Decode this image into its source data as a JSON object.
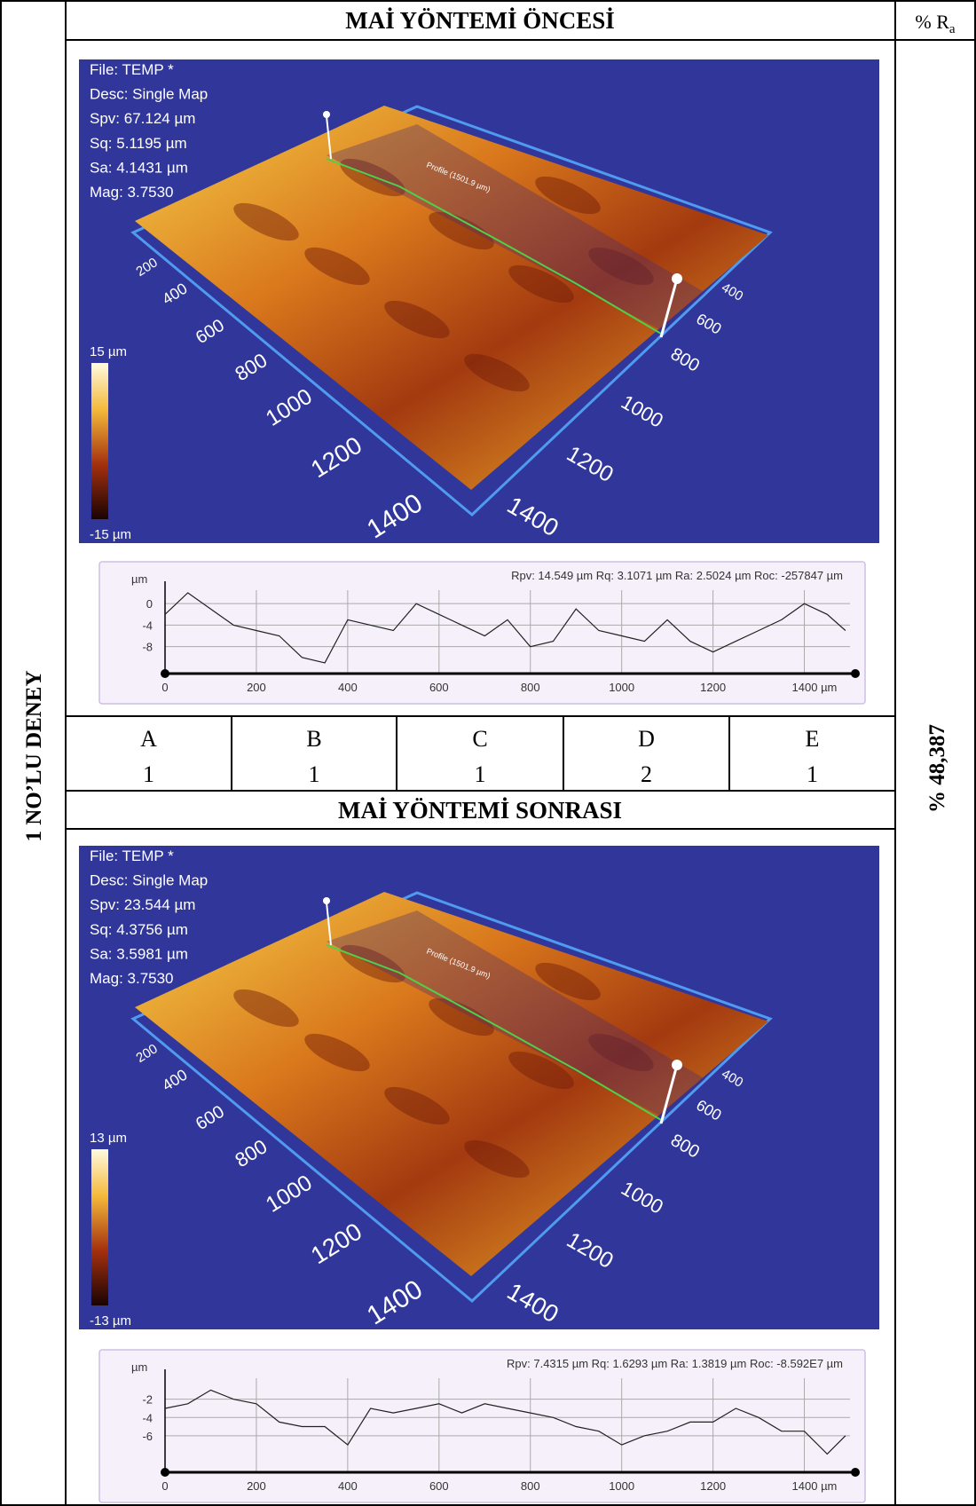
{
  "side_label": "1 NO’LU DENEY",
  "ra_header": {
    "text": "% R",
    "subscript": "a"
  },
  "ra_value": "% 48,387",
  "before": {
    "title": "MAİ YÖNTEMİ ÖNCESİ",
    "map": {
      "info": [
        "File: TEMP *",
        "Desc: Single Map",
        "Spv: 67.124 µm",
        "Sq: 5.1195 µm",
        "Sa: 4.1431 µm",
        "Mag: 3.7530"
      ],
      "colorbar_max": "15 µm",
      "colorbar_min": "-15 µm",
      "profile_label": "Profile (1501.9 µm)",
      "left_ticks": [
        200,
        400,
        600,
        800,
        1000,
        1200,
        1400
      ],
      "right_ticks": [
        400,
        600,
        800,
        1000,
        1200,
        1400
      ]
    },
    "profile": {
      "type": "line",
      "y_unit": "µm",
      "stats": "Rpv: 14.549 µm  Rq: 3.1071 µm  Ra: 2.5024 µm  Roc: -257847 µm",
      "x": [
        0,
        50,
        100,
        150,
        200,
        250,
        300,
        350,
        400,
        450,
        500,
        550,
        600,
        650,
        700,
        750,
        800,
        850,
        900,
        950,
        1000,
        1050,
        1100,
        1150,
        1200,
        1250,
        1300,
        1350,
        1400,
        1450,
        1490
      ],
      "values": [
        -2,
        2,
        -1,
        -4,
        -5,
        -6,
        -10,
        -11,
        -3,
        -4,
        -5,
        0,
        -2,
        -4,
        -6,
        -3,
        -8,
        -7,
        -1,
        -5,
        -6,
        -7,
        -3,
        -7,
        -9,
        -7,
        -5,
        -3,
        0,
        -2,
        -5
      ],
      "xlim": [
        0,
        1500
      ],
      "ylim": [
        -13,
        2.5
      ],
      "yticks": [
        0,
        -4,
        -8
      ],
      "xticks": [
        0,
        200,
        400,
        600,
        800,
        1000,
        1200,
        {
          "value": 1400,
          "label": "1400 µm"
        }
      ]
    }
  },
  "scores": {
    "headers": [
      "A",
      "B",
      "C",
      "D",
      "E"
    ],
    "values": [
      1,
      1,
      1,
      2,
      1
    ]
  },
  "after": {
    "title": "MAİ YÖNTEMİ SONRASI",
    "map": {
      "info": [
        "File: TEMP *",
        "Desc: Single Map",
        "Spv: 23.544 µm",
        "Sq: 4.3756 µm",
        "Sa: 3.5981 µm",
        "Mag: 3.7530"
      ],
      "colorbar_max": "13 µm",
      "colorbar_min": "-13 µm",
      "profile_label": "Profile (1501.9 µm)",
      "left_ticks": [
        200,
        400,
        600,
        800,
        1000,
        1200,
        1400
      ],
      "right_ticks": [
        400,
        600,
        800,
        1000,
        1200,
        1400
      ]
    },
    "profile": {
      "type": "line",
      "y_unit": "µm",
      "stats": "Rpv: 7.4315 µm  Rq: 1.6293 µm  Ra: 1.3819 µm  Roc: -8.592E7 µm",
      "x": [
        0,
        50,
        100,
        150,
        200,
        250,
        300,
        350,
        400,
        450,
        500,
        550,
        600,
        650,
        700,
        750,
        800,
        850,
        900,
        950,
        1000,
        1050,
        1100,
        1150,
        1200,
        1250,
        1300,
        1350,
        1400,
        1450,
        1490
      ],
      "values": [
        -3,
        -2.5,
        -1,
        -2,
        -2.5,
        -4.5,
        -5,
        -5,
        -7,
        -3,
        -3.5,
        -3,
        -2.5,
        -3.5,
        -2.5,
        -3,
        -3.5,
        -4,
        -5,
        -5.5,
        -7,
        -6,
        -5.5,
        -4.5,
        -4.5,
        -3,
        -4,
        -5.5,
        -5.5,
        -8,
        -6
      ],
      "xlim": [
        0,
        1500
      ],
      "ylim": [
        -10,
        0.3
      ],
      "yticks": [
        -2,
        -4,
        -6
      ],
      "xticks": [
        0,
        200,
        400,
        600,
        800,
        1000,
        1200,
        {
          "value": 1400,
          "label": "1400 µm"
        }
      ]
    }
  }
}
